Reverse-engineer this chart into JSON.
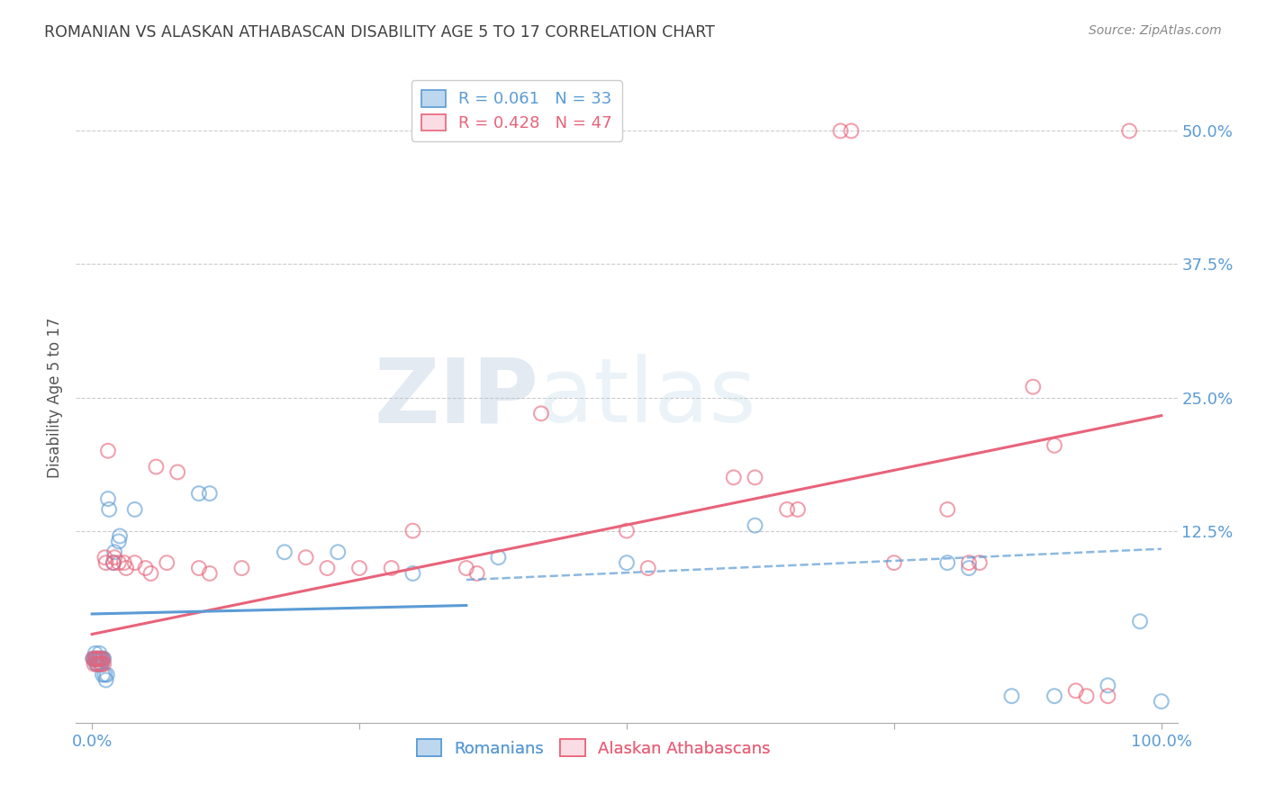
{
  "title": "ROMANIAN VS ALASKAN ATHABASCAN DISABILITY AGE 5 TO 17 CORRELATION CHART",
  "source": "Source: ZipAtlas.com",
  "ylabel": "Disability Age 5 to 17",
  "xlim": [
    -0.015,
    1.015
  ],
  "ylim": [
    -0.055,
    0.555
  ],
  "yticks": [
    0.0,
    0.125,
    0.25,
    0.375,
    0.5
  ],
  "ytick_labels": [
    "",
    "12.5%",
    "25.0%",
    "37.5%",
    "50.0%"
  ],
  "xticks": [
    0.0,
    0.25,
    0.5,
    0.75,
    1.0
  ],
  "xtick_labels": [
    "0.0%",
    "",
    "",
    "",
    "100.0%"
  ],
  "legend_labels_bottom": [
    "Romanians",
    "Alaskan Athabascans"
  ],
  "watermark_zip": "ZIP",
  "watermark_atlas": "atlas",
  "bg_color": "#FFFFFF",
  "blue_color": "#5B9BD5",
  "pink_color": "#E8637A",
  "grid_color": "#CCCCCC",
  "title_color": "#404040",
  "axis_label_color": "#5B9BD5",
  "romanian_points": [
    [
      0.001,
      0.005
    ],
    [
      0.002,
      0.005
    ],
    [
      0.003,
      0.005
    ],
    [
      0.003,
      0.01
    ],
    [
      0.004,
      0.0
    ],
    [
      0.004,
      0.005
    ],
    [
      0.005,
      0.005
    ],
    [
      0.005,
      0.0
    ],
    [
      0.006,
      0.005
    ],
    [
      0.007,
      0.005
    ],
    [
      0.007,
      0.01
    ],
    [
      0.008,
      0.005
    ],
    [
      0.008,
      0.0
    ],
    [
      0.009,
      0.0
    ],
    [
      0.009,
      0.005
    ],
    [
      0.01,
      0.005
    ],
    [
      0.01,
      -0.01
    ],
    [
      0.011,
      0.005
    ],
    [
      0.012,
      -0.01
    ],
    [
      0.013,
      -0.015
    ],
    [
      0.014,
      -0.01
    ],
    [
      0.015,
      0.155
    ],
    [
      0.016,
      0.145
    ],
    [
      0.02,
      0.095
    ],
    [
      0.021,
      0.105
    ],
    [
      0.025,
      0.115
    ],
    [
      0.026,
      0.12
    ],
    [
      0.04,
      0.145
    ],
    [
      0.1,
      0.16
    ],
    [
      0.11,
      0.16
    ],
    [
      0.18,
      0.105
    ],
    [
      0.23,
      0.105
    ],
    [
      0.3,
      0.085
    ],
    [
      0.38,
      0.1
    ],
    [
      0.5,
      0.095
    ],
    [
      0.62,
      0.13
    ],
    [
      0.8,
      0.095
    ],
    [
      0.82,
      0.09
    ],
    [
      0.86,
      -0.03
    ],
    [
      0.9,
      -0.03
    ],
    [
      0.95,
      -0.02
    ],
    [
      0.98,
      0.04
    ],
    [
      1.0,
      -0.035
    ]
  ],
  "athabascan_points": [
    [
      0.001,
      0.005
    ],
    [
      0.002,
      0.0
    ],
    [
      0.003,
      0.005
    ],
    [
      0.004,
      0.005
    ],
    [
      0.005,
      0.0
    ],
    [
      0.006,
      0.005
    ],
    [
      0.007,
      0.0
    ],
    [
      0.008,
      0.005
    ],
    [
      0.009,
      0.0
    ],
    [
      0.01,
      0.005
    ],
    [
      0.011,
      0.0
    ],
    [
      0.012,
      0.1
    ],
    [
      0.013,
      0.095
    ],
    [
      0.015,
      0.2
    ],
    [
      0.02,
      0.095
    ],
    [
      0.021,
      0.1
    ],
    [
      0.025,
      0.095
    ],
    [
      0.03,
      0.095
    ],
    [
      0.032,
      0.09
    ],
    [
      0.04,
      0.095
    ],
    [
      0.05,
      0.09
    ],
    [
      0.055,
      0.085
    ],
    [
      0.06,
      0.185
    ],
    [
      0.07,
      0.095
    ],
    [
      0.08,
      0.18
    ],
    [
      0.1,
      0.09
    ],
    [
      0.11,
      0.085
    ],
    [
      0.14,
      0.09
    ],
    [
      0.2,
      0.1
    ],
    [
      0.22,
      0.09
    ],
    [
      0.25,
      0.09
    ],
    [
      0.28,
      0.09
    ],
    [
      0.3,
      0.125
    ],
    [
      0.35,
      0.09
    ],
    [
      0.36,
      0.085
    ],
    [
      0.42,
      0.235
    ],
    [
      0.5,
      0.125
    ],
    [
      0.52,
      0.09
    ],
    [
      0.6,
      0.175
    ],
    [
      0.62,
      0.175
    ],
    [
      0.65,
      0.145
    ],
    [
      0.66,
      0.145
    ],
    [
      0.7,
      0.5
    ],
    [
      0.71,
      0.5
    ],
    [
      0.75,
      0.095
    ],
    [
      0.8,
      0.145
    ],
    [
      0.82,
      0.095
    ],
    [
      0.83,
      0.095
    ],
    [
      0.88,
      0.26
    ],
    [
      0.9,
      0.205
    ],
    [
      0.92,
      -0.025
    ],
    [
      0.93,
      -0.03
    ],
    [
      0.95,
      -0.03
    ],
    [
      0.97,
      0.5
    ]
  ],
  "athabascan_line": {
    "x0": 0.0,
    "y0": 0.028,
    "x1": 1.0,
    "y1": 0.233
  },
  "romanian_solid_line": {
    "x0": 0.0,
    "y0": 0.047,
    "x1": 0.35,
    "y1": 0.055
  },
  "romanian_dashed_line": {
    "x0": 0.35,
    "y0": 0.079,
    "x1": 1.0,
    "y1": 0.108
  }
}
